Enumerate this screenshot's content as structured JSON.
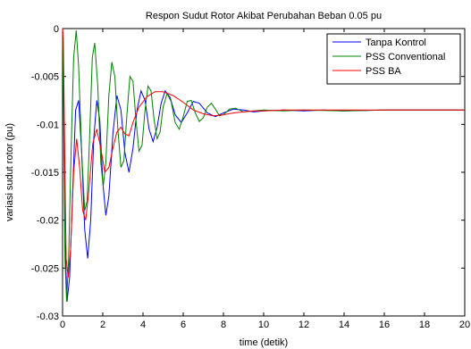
{
  "chart_data": {
    "type": "line",
    "title": "Respon Sudut Rotor Akibat Perubahan Beban 0.05 pu",
    "xlabel": "time (detik)",
    "ylabel": "variasi sudut rotor (pu)",
    "xlim": [
      0,
      20
    ],
    "ylim": [
      -0.03,
      0
    ],
    "grid": false,
    "legend_position": "top-right",
    "x_ticks": [
      0,
      2,
      4,
      6,
      8,
      10,
      12,
      14,
      16,
      18,
      20
    ],
    "x_tick_labels": [
      "0",
      "2",
      "4",
      "6",
      "8",
      "10",
      "12",
      "14",
      "16",
      "18",
      "20"
    ],
    "y_ticks": [
      0,
      -0.005,
      -0.01,
      -0.015,
      -0.02,
      -0.025,
      -0.03
    ],
    "y_tick_labels": [
      "0",
      "-0.005",
      "-0.01",
      "-0.015",
      "-0.02",
      "-0.025",
      "-0.03"
    ],
    "series": [
      {
        "name": "Tanpa Kontrol",
        "color": "#0000ff",
        "points": [
          [
            0,
            0
          ],
          [
            0.05,
            -0.006
          ],
          [
            0.12,
            -0.022
          ],
          [
            0.22,
            -0.0285
          ],
          [
            0.35,
            -0.026
          ],
          [
            0.5,
            -0.017
          ],
          [
            0.65,
            -0.0085
          ],
          [
            0.8,
            -0.0075
          ],
          [
            0.95,
            -0.013
          ],
          [
            1.1,
            -0.021
          ],
          [
            1.25,
            -0.024
          ],
          [
            1.4,
            -0.02
          ],
          [
            1.55,
            -0.0115
          ],
          [
            1.7,
            -0.0075
          ],
          [
            1.85,
            -0.0095
          ],
          [
            2.0,
            -0.016
          ],
          [
            2.15,
            -0.0195
          ],
          [
            2.3,
            -0.0175
          ],
          [
            2.5,
            -0.011
          ],
          [
            2.7,
            -0.007
          ],
          [
            2.9,
            -0.0085
          ],
          [
            3.1,
            -0.013
          ],
          [
            3.3,
            -0.015
          ],
          [
            3.5,
            -0.0125
          ],
          [
            3.7,
            -0.0085
          ],
          [
            3.9,
            -0.0065
          ],
          [
            4.1,
            -0.0075
          ],
          [
            4.3,
            -0.0105
          ],
          [
            4.5,
            -0.0118
          ],
          [
            4.7,
            -0.0103
          ],
          [
            4.9,
            -0.0078
          ],
          [
            5.1,
            -0.0065
          ],
          [
            5.35,
            -0.0072
          ],
          [
            5.6,
            -0.009
          ],
          [
            5.9,
            -0.0098
          ],
          [
            6.2,
            -0.0088
          ],
          [
            6.5,
            -0.0076
          ],
          [
            6.8,
            -0.0078
          ],
          [
            7.2,
            -0.0088
          ],
          [
            7.6,
            -0.0092
          ],
          [
            8.0,
            -0.0088
          ],
          [
            8.5,
            -0.0084
          ],
          [
            9.0,
            -0.0085
          ],
          [
            9.5,
            -0.0087
          ],
          [
            10,
            -0.0086
          ],
          [
            11,
            -0.0085
          ],
          [
            12,
            -0.0086
          ],
          [
            13,
            -0.0085
          ],
          [
            14,
            -0.0086
          ],
          [
            16,
            -0.0085
          ],
          [
            18,
            -0.0085
          ],
          [
            20,
            -0.0085
          ]
        ]
      },
      {
        "name": "PSS Conventional",
        "color": "#008000",
        "points": [
          [
            0,
            0
          ],
          [
            0.05,
            -0.008
          ],
          [
            0.12,
            -0.024
          ],
          [
            0.2,
            -0.0285
          ],
          [
            0.3,
            -0.024
          ],
          [
            0.42,
            -0.013
          ],
          [
            0.55,
            -0.003
          ],
          [
            0.68,
            -0.0002
          ],
          [
            0.8,
            -0.004
          ],
          [
            0.95,
            -0.013
          ],
          [
            1.1,
            -0.019
          ],
          [
            1.22,
            -0.018
          ],
          [
            1.35,
            -0.011
          ],
          [
            1.48,
            -0.003
          ],
          [
            1.6,
            -0.0015
          ],
          [
            1.75,
            -0.006
          ],
          [
            1.9,
            -0.014
          ],
          [
            2.02,
            -0.0165
          ],
          [
            2.15,
            -0.014
          ],
          [
            2.3,
            -0.007
          ],
          [
            2.45,
            -0.0035
          ],
          [
            2.6,
            -0.005
          ],
          [
            2.75,
            -0.0105
          ],
          [
            2.9,
            -0.0145
          ],
          [
            3.05,
            -0.0138
          ],
          [
            3.2,
            -0.009
          ],
          [
            3.35,
            -0.005
          ],
          [
            3.5,
            -0.0055
          ],
          [
            3.65,
            -0.0095
          ],
          [
            3.8,
            -0.0128
          ],
          [
            3.95,
            -0.0122
          ],
          [
            4.1,
            -0.0085
          ],
          [
            4.25,
            -0.006
          ],
          [
            4.4,
            -0.0065
          ],
          [
            4.55,
            -0.0095
          ],
          [
            4.7,
            -0.0115
          ],
          [
            4.85,
            -0.0108
          ],
          [
            5.0,
            -0.0082
          ],
          [
            5.2,
            -0.0068
          ],
          [
            5.4,
            -0.0076
          ],
          [
            5.6,
            -0.0098
          ],
          [
            5.8,
            -0.0105
          ],
          [
            6.0,
            -0.0092
          ],
          [
            6.2,
            -0.0076
          ],
          [
            6.4,
            -0.0075
          ],
          [
            6.6,
            -0.0088
          ],
          [
            6.8,
            -0.0097
          ],
          [
            7.0,
            -0.0093
          ],
          [
            7.2,
            -0.0082
          ],
          [
            7.4,
            -0.0078
          ],
          [
            7.6,
            -0.0084
          ],
          [
            7.8,
            -0.0091
          ],
          [
            8.0,
            -0.009
          ],
          [
            8.3,
            -0.0084
          ],
          [
            8.6,
            -0.0083
          ],
          [
            9.0,
            -0.0087
          ],
          [
            9.5,
            -0.0086
          ],
          [
            10,
            -0.0085
          ],
          [
            11,
            -0.0086
          ],
          [
            12,
            -0.0085
          ],
          [
            14,
            -0.0086
          ],
          [
            16,
            -0.0085
          ],
          [
            18,
            -0.0085
          ],
          [
            20,
            -0.0085
          ]
        ]
      },
      {
        "name": "PSS BA",
        "color": "#ff0000",
        "points": [
          [
            0,
            0
          ],
          [
            0.04,
            -0.001
          ],
          [
            0.1,
            -0.012
          ],
          [
            0.18,
            -0.024
          ],
          [
            0.28,
            -0.026
          ],
          [
            0.4,
            -0.023
          ],
          [
            0.55,
            -0.015
          ],
          [
            0.7,
            -0.0115
          ],
          [
            0.85,
            -0.0145
          ],
          [
            1.0,
            -0.019
          ],
          [
            1.15,
            -0.02
          ],
          [
            1.3,
            -0.017
          ],
          [
            1.5,
            -0.012
          ],
          [
            1.7,
            -0.0105
          ],
          [
            1.9,
            -0.0125
          ],
          [
            2.1,
            -0.015
          ],
          [
            2.3,
            -0.0145
          ],
          [
            2.5,
            -0.0125
          ],
          [
            2.7,
            -0.0108
          ],
          [
            2.9,
            -0.0103
          ],
          [
            3.1,
            -0.011
          ],
          [
            3.3,
            -0.0112
          ],
          [
            3.5,
            -0.0098
          ],
          [
            3.8,
            -0.0082
          ],
          [
            4.2,
            -0.0071
          ],
          [
            4.6,
            -0.0066
          ],
          [
            5.0,
            -0.0066
          ],
          [
            5.5,
            -0.007
          ],
          [
            6.0,
            -0.0077
          ],
          [
            6.5,
            -0.0085
          ],
          [
            7.0,
            -0.0089
          ],
          [
            7.5,
            -0.0091
          ],
          [
            8.0,
            -0.009
          ],
          [
            8.5,
            -0.0088
          ],
          [
            9.0,
            -0.0087
          ],
          [
            9.5,
            -0.0086
          ],
          [
            10,
            -0.0086
          ],
          [
            11,
            -0.0085
          ],
          [
            12,
            -0.0085
          ],
          [
            14,
            -0.0085
          ],
          [
            16,
            -0.0085
          ],
          [
            18,
            -0.0085
          ],
          [
            20,
            -0.0085
          ]
        ]
      }
    ]
  }
}
